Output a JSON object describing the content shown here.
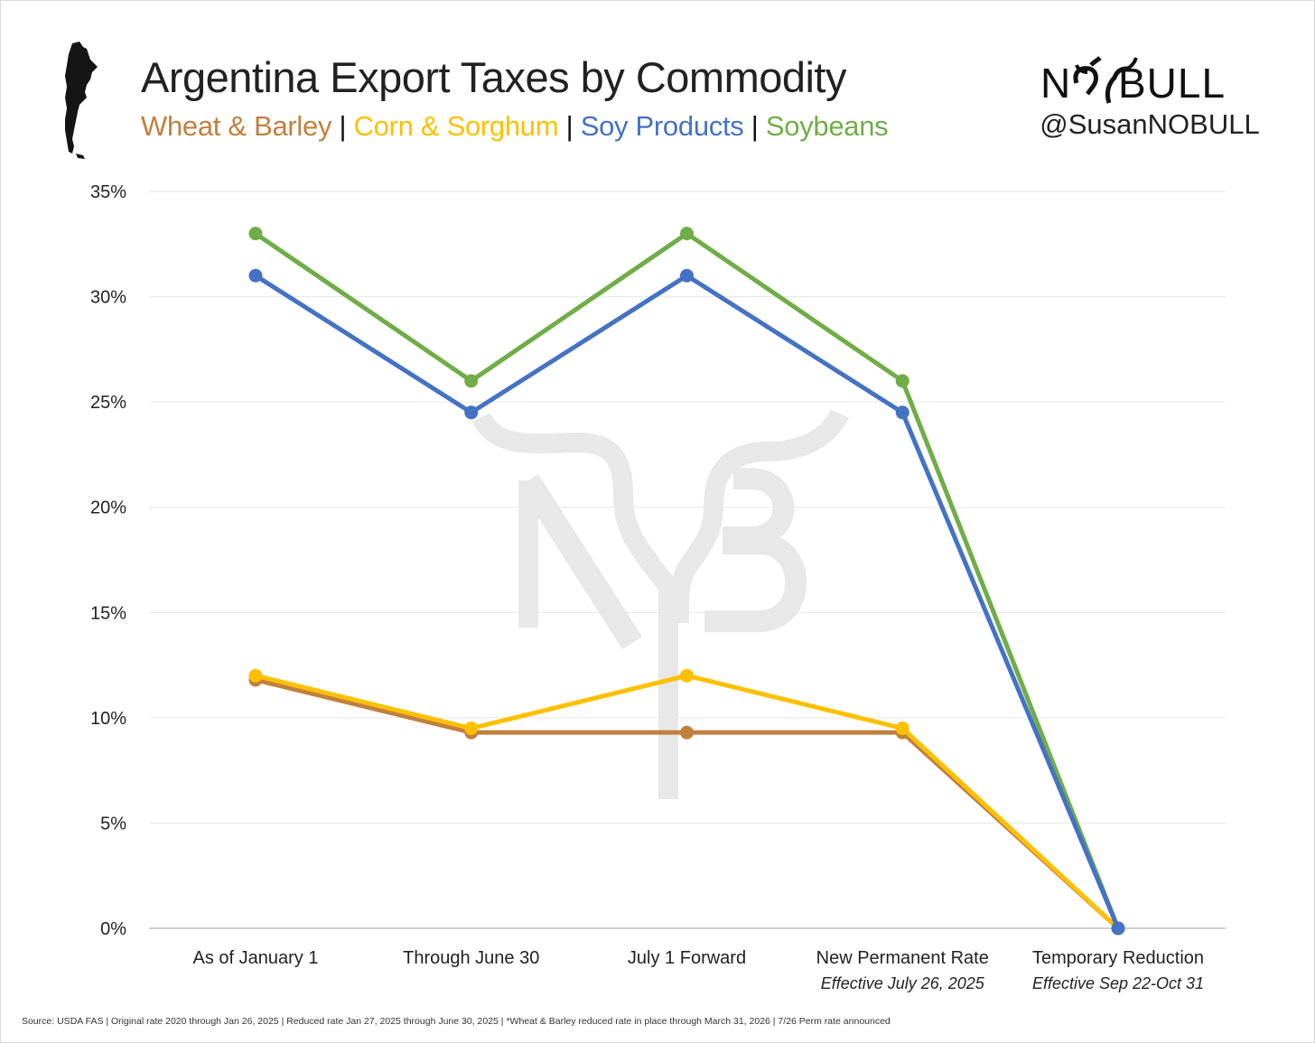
{
  "header": {
    "title": "Argentina Export Taxes by Commodity",
    "subtitle_items": [
      {
        "label": "Wheat & Barley",
        "color": "#C0803E"
      },
      {
        "label": "Corn & Sorghum",
        "color": "#FFC000"
      },
      {
        "label": "Soy Products",
        "color": "#4472C4"
      },
      {
        "label": "Soybeans",
        "color": "#70AD47"
      }
    ],
    "separator": "|"
  },
  "brand": {
    "logo_text": "NOBULL",
    "handle": "@SusanNOBULL",
    "watermark": "NB"
  },
  "footer": {
    "source": "Source: USDA FAS | Original rate 2020 through Jan 26, 2025 | Reduced rate Jan 27, 2025 through June 30, 2025 | *Wheat & Barley reduced rate in place through March 31, 2026 | 7/26 Perm rate announced"
  },
  "chart_data": {
    "type": "line",
    "title": "Argentina Export Taxes by Commodity",
    "xlabel": "",
    "ylabel": "",
    "categories": [
      "As of January 1",
      "Through June 30",
      "July 1 Forward",
      "New Permanent Rate",
      "Temporary Reduction"
    ],
    "category_sublabels": [
      "",
      "",
      "",
      "Effective July 26, 2025",
      "Effective Sep 22-Oct 31"
    ],
    "ylim": [
      0,
      35
    ],
    "yticks": [
      0,
      5,
      10,
      15,
      20,
      25,
      30,
      35
    ],
    "ytick_labels": [
      "0%",
      "5%",
      "10%",
      "15%",
      "20%",
      "25%",
      "30%",
      "35%"
    ],
    "grid": true,
    "legend": "top (in subtitle)",
    "series": [
      {
        "name": "Wheat & Barley",
        "color": "#C0803E",
        "values": [
          11.8,
          9.3,
          9.3,
          9.3,
          0
        ]
      },
      {
        "name": "Corn & Sorghum",
        "color": "#FFC000",
        "values": [
          12,
          9.5,
          12,
          9.5,
          0
        ]
      },
      {
        "name": "Soybeans",
        "color": "#70AD47",
        "values": [
          33,
          26,
          33,
          26,
          0
        ]
      },
      {
        "name": "Soy Products",
        "color": "#4472C4",
        "values": [
          31,
          24.5,
          31,
          24.5,
          0
        ]
      }
    ]
  }
}
